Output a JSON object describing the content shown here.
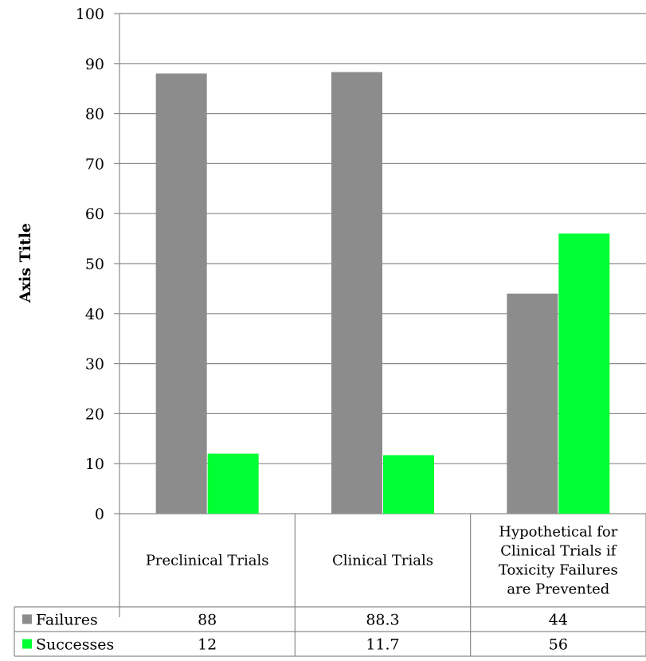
{
  "chart_data": {
    "type": "bar",
    "title": "",
    "ylabel": "Axis Title",
    "xlabel": "",
    "ylim": [
      0,
      100
    ],
    "yticks": [
      0,
      10,
      20,
      30,
      40,
      50,
      60,
      70,
      80,
      90,
      100
    ],
    "grid": true,
    "legend": "data-table",
    "categories": [
      "Preclinical Trials",
      "Clinical Trials",
      "Hypothetical for Clinical Trials if Toxicity Failures are Prevented"
    ],
    "category_label_lines": [
      [
        "Preclinical Trials"
      ],
      [
        "Clinical Trials"
      ],
      [
        "Hypothetical for",
        "Clinical Trials if",
        "Toxicity Failures",
        "are Prevented"
      ]
    ],
    "series": [
      {
        "name": "Failures",
        "values": [
          88,
          88.3,
          44
        ],
        "display_values": [
          "88",
          "88.3",
          "44"
        ],
        "color": "#8c8c8c"
      },
      {
        "name": "Successes",
        "values": [
          12,
          11.7,
          56
        ],
        "display_values": [
          "12",
          "11.7",
          "56"
        ],
        "color": "#00ff33"
      }
    ]
  }
}
